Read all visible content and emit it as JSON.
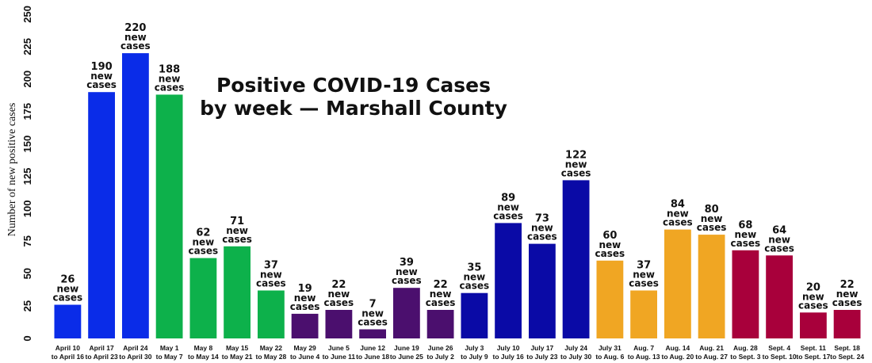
{
  "chart_data": {
    "type": "bar",
    "title": [
      "Positive COVID-19 Cases",
      "by week — Marshall County"
    ],
    "xlabel": "",
    "ylabel": "Number of new positive cases",
    "ylim": [
      0,
      250
    ],
    "yticks": [
      0,
      25,
      50,
      75,
      100,
      125,
      150,
      175,
      200,
      225,
      250
    ],
    "grid": false,
    "legend": "none",
    "label_suffix": [
      "new",
      "cases"
    ],
    "categories": [
      [
        "April 10",
        "to April 16"
      ],
      [
        "April 17",
        "to April 23"
      ],
      [
        "April 24",
        "to April 30"
      ],
      [
        "May 1",
        "to May 7"
      ],
      [
        "May 8",
        "to May 14"
      ],
      [
        "May 15",
        "to May 21"
      ],
      [
        "May 22",
        "to May 28"
      ],
      [
        "May 29",
        "to June 4"
      ],
      [
        "June 5",
        "to June 11"
      ],
      [
        "June 12",
        "to June 18"
      ],
      [
        "June 19",
        "to June 25"
      ],
      [
        "June 26",
        "to July 2"
      ],
      [
        "July 3",
        "to July 9"
      ],
      [
        "July 10",
        "to July 16"
      ],
      [
        "July 17",
        "to July 23"
      ],
      [
        "July 24",
        "to July 30"
      ],
      [
        "July 31",
        "to Aug. 6"
      ],
      [
        "Aug. 7",
        "to Aug. 13"
      ],
      [
        "Aug. 14",
        "to Aug. 20"
      ],
      [
        "Aug. 21",
        "to Aug. 27"
      ],
      [
        "Aug. 28",
        "to Sept. 3"
      ],
      [
        "Sept. 4",
        "to Sept. 10"
      ],
      [
        "Sept. 11",
        "to Sept. 17"
      ],
      [
        "Sept. 18",
        "to Sept. 24"
      ]
    ],
    "values": [
      26,
      190,
      220,
      188,
      62,
      71,
      37,
      19,
      22,
      7,
      39,
      22,
      35,
      89,
      73,
      122,
      60,
      37,
      84,
      80,
      68,
      64,
      20,
      22
    ],
    "color_groups": [
      0,
      0,
      0,
      1,
      1,
      1,
      1,
      2,
      2,
      2,
      2,
      2,
      3,
      3,
      3,
      3,
      4,
      4,
      4,
      4,
      5,
      5,
      5,
      5
    ],
    "palette": [
      "#0a2ce8",
      "#0db14b",
      "#4b0f6e",
      "#0a0aa6",
      "#f0a623",
      "#a8003b"
    ]
  }
}
